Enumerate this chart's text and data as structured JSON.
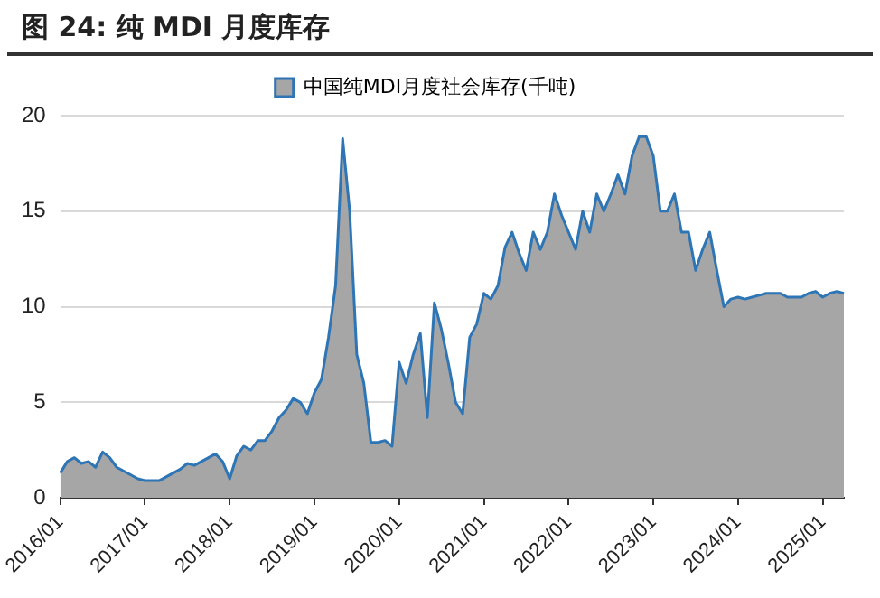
{
  "chart_data": {
    "type": "area",
    "title": "图 24:  纯 MDI 月度库存",
    "categories": [
      "2016/01",
      null,
      null,
      null,
      null,
      null,
      null,
      null,
      null,
      null,
      null,
      null,
      "2017/01",
      null,
      null,
      null,
      null,
      null,
      null,
      null,
      null,
      null,
      null,
      null,
      "2018/01",
      null,
      null,
      null,
      null,
      null,
      null,
      null,
      null,
      null,
      null,
      null,
      "2019/01",
      null,
      null,
      null,
      null,
      null,
      null,
      null,
      null,
      null,
      null,
      null,
      "2020/01",
      null,
      null,
      null,
      null,
      null,
      null,
      null,
      null,
      null,
      null,
      null,
      "2021/01",
      null,
      null,
      null,
      null,
      null,
      null,
      null,
      null,
      null,
      null,
      null,
      "2022/01",
      null,
      null,
      null,
      null,
      null,
      null,
      null,
      null,
      null,
      null,
      null,
      "2023/01",
      null,
      null,
      null,
      null,
      null,
      null,
      null,
      null,
      null,
      null,
      null,
      "2024/01",
      null,
      null,
      null,
      null,
      null,
      null,
      null,
      null,
      null,
      null,
      null,
      "2025/01",
      null,
      null,
      null
    ],
    "series": [
      {
        "name": "中国纯MDI月度社会库存(千吨)",
        "color": "#2e75b6",
        "values": [
          1.3,
          1.9,
          2.1,
          1.8,
          1.9,
          1.6,
          2.4,
          2.1,
          1.6,
          1.4,
          1.2,
          1.0,
          0.9,
          0.9,
          0.9,
          1.1,
          1.3,
          1.5,
          1.8,
          1.7,
          1.9,
          2.1,
          2.3,
          1.9,
          1.0,
          2.2,
          2.7,
          2.5,
          3.0,
          3.0,
          3.5,
          4.2,
          4.6,
          5.2,
          5.0,
          4.4,
          5.5,
          6.2,
          8.4,
          11.1,
          18.8,
          15.0,
          7.5,
          6.0,
          2.9,
          2.9,
          3.0,
          2.7,
          7.1,
          6.0,
          7.5,
          8.6,
          4.2,
          10.2,
          8.8,
          7.0,
          5.0,
          4.4,
          8.4,
          9.1,
          10.7,
          10.4,
          11.1,
          13.1,
          13.9,
          12.8,
          11.9,
          13.9,
          13.0,
          13.9,
          15.9,
          14.8,
          13.9,
          13.0,
          15.0,
          13.9,
          15.9,
          15.0,
          15.9,
          16.9,
          15.9,
          17.9,
          18.9,
          18.9,
          17.9,
          15.0,
          15.0,
          15.9,
          13.9,
          13.9,
          11.9,
          13.0,
          13.9,
          11.9,
          10.0,
          10.4,
          10.5,
          10.4,
          10.5,
          10.6,
          10.7,
          10.7,
          10.7,
          10.5,
          10.5,
          10.5,
          10.7,
          10.8,
          10.5,
          10.7,
          10.8,
          10.7
        ]
      }
    ],
    "ylim": [
      0,
      20
    ],
    "yticks": [
      0,
      5,
      10,
      15,
      20
    ],
    "grid": "y",
    "legend": "top"
  }
}
